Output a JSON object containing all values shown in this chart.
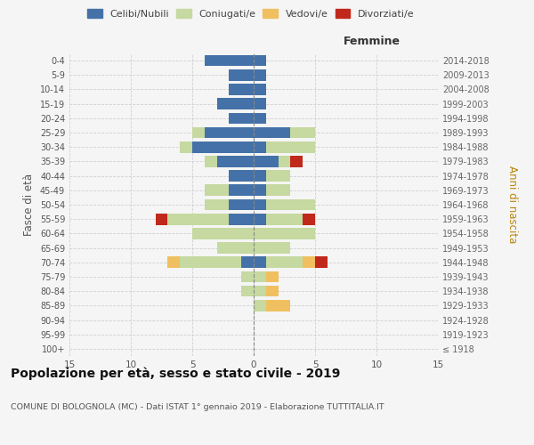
{
  "age_groups": [
    "100+",
    "95-99",
    "90-94",
    "85-89",
    "80-84",
    "75-79",
    "70-74",
    "65-69",
    "60-64",
    "55-59",
    "50-54",
    "45-49",
    "40-44",
    "35-39",
    "30-34",
    "25-29",
    "20-24",
    "15-19",
    "10-14",
    "5-9",
    "0-4"
  ],
  "birth_years": [
    "≤ 1918",
    "1919-1923",
    "1924-1928",
    "1929-1933",
    "1934-1938",
    "1939-1943",
    "1944-1948",
    "1949-1953",
    "1954-1958",
    "1959-1963",
    "1964-1968",
    "1969-1973",
    "1974-1978",
    "1979-1983",
    "1984-1988",
    "1989-1993",
    "1994-1998",
    "1999-2003",
    "2004-2008",
    "2009-2013",
    "2014-2018"
  ],
  "males": {
    "celibi": [
      0,
      0,
      0,
      0,
      0,
      0,
      1,
      0,
      0,
      2,
      2,
      2,
      2,
      3,
      5,
      4,
      2,
      3,
      2,
      2,
      4
    ],
    "coniugati": [
      0,
      0,
      0,
      0,
      1,
      1,
      5,
      3,
      5,
      5,
      2,
      2,
      0,
      1,
      1,
      1,
      0,
      0,
      0,
      0,
      0
    ],
    "vedovi": [
      0,
      0,
      0,
      0,
      0,
      0,
      1,
      0,
      0,
      0,
      0,
      0,
      0,
      0,
      0,
      0,
      0,
      0,
      0,
      0,
      0
    ],
    "divorziati": [
      0,
      0,
      0,
      0,
      0,
      0,
      0,
      0,
      0,
      1,
      0,
      0,
      0,
      0,
      0,
      0,
      0,
      0,
      0,
      0,
      0
    ]
  },
  "females": {
    "nubili": [
      0,
      0,
      0,
      0,
      0,
      0,
      1,
      0,
      0,
      1,
      1,
      1,
      1,
      2,
      1,
      3,
      1,
      1,
      1,
      1,
      1
    ],
    "coniugate": [
      0,
      0,
      0,
      1,
      1,
      1,
      3,
      3,
      5,
      3,
      4,
      2,
      2,
      1,
      4,
      2,
      0,
      0,
      0,
      0,
      0
    ],
    "vedove": [
      0,
      0,
      0,
      2,
      1,
      1,
      1,
      0,
      0,
      0,
      0,
      0,
      0,
      0,
      0,
      0,
      0,
      0,
      0,
      0,
      0
    ],
    "divorziate": [
      0,
      0,
      0,
      0,
      0,
      0,
      1,
      0,
      0,
      1,
      0,
      0,
      0,
      1,
      0,
      0,
      0,
      0,
      0,
      0,
      0
    ]
  },
  "colors": {
    "celibi_nubili": "#4472a8",
    "coniugati": "#c5d9a0",
    "vedovi": "#f0c060",
    "divorziati": "#c0281c"
  },
  "xlim": 15,
  "title": "Popolazione per età, sesso e stato civile - 2019",
  "subtitle": "COMUNE DI BOLOGNOLA (MC) - Dati ISTAT 1° gennaio 2019 - Elaborazione TUTTITALIA.IT",
  "ylabel_left": "Fasce di età",
  "ylabel_right": "Anni di nascita",
  "xlabel_right": "Femmine",
  "bg_color": "#f5f5f5",
  "grid_color": "#cccccc"
}
